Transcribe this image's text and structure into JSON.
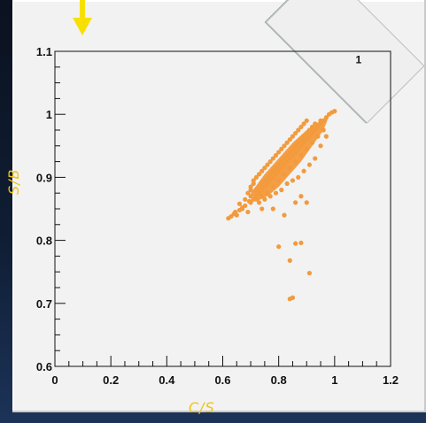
{
  "colors": {
    "point": "#f39a3c",
    "axes": "#111111",
    "label": "#f0c21a",
    "arrow": "#f7e000"
  },
  "decor": {
    "corner_ruler_label": "1"
  },
  "chart_data": {
    "type": "scatter",
    "xlabel": "C/S",
    "ylabel": "S/B",
    "xlim": [
      0,
      1.2
    ],
    "ylim": [
      0.6,
      1.1
    ],
    "x_ticks": [
      0,
      0.2,
      0.4,
      0.6,
      0.8,
      1,
      1.2
    ],
    "x_tick_labels": [
      "0",
      "0.2",
      "0.4",
      "0.6",
      "0.8",
      "1",
      "1.2"
    ],
    "y_ticks": [
      0.6,
      0.7,
      0.8,
      0.9,
      1,
      1.1
    ],
    "y_tick_labels": [
      "0.6",
      "0.7",
      "0.8",
      "0.9",
      "1",
      "1.1"
    ],
    "grid": false,
    "series": [
      {
        "values": [
          [
            0.62,
            0.835
          ],
          [
            0.63,
            0.838
          ],
          [
            0.64,
            0.842
          ],
          [
            0.645,
            0.845
          ],
          [
            0.66,
            0.848
          ],
          [
            0.67,
            0.852
          ],
          [
            0.68,
            0.855
          ],
          [
            0.69,
            0.845
          ],
          [
            0.7,
            0.86
          ],
          [
            0.7,
            0.87
          ],
          [
            0.71,
            0.865
          ],
          [
            0.72,
            0.87
          ],
          [
            0.72,
            0.88
          ],
          [
            0.73,
            0.875
          ],
          [
            0.73,
            0.885
          ],
          [
            0.74,
            0.88
          ],
          [
            0.74,
            0.89
          ],
          [
            0.75,
            0.885
          ],
          [
            0.75,
            0.895
          ],
          [
            0.76,
            0.89
          ],
          [
            0.76,
            0.9
          ],
          [
            0.77,
            0.895
          ],
          [
            0.77,
            0.905
          ],
          [
            0.78,
            0.9
          ],
          [
            0.78,
            0.91
          ],
          [
            0.79,
            0.905
          ],
          [
            0.79,
            0.915
          ],
          [
            0.8,
            0.91
          ],
          [
            0.8,
            0.92
          ],
          [
            0.81,
            0.915
          ],
          [
            0.81,
            0.925
          ],
          [
            0.82,
            0.92
          ],
          [
            0.82,
            0.93
          ],
          [
            0.83,
            0.925
          ],
          [
            0.83,
            0.935
          ],
          [
            0.84,
            0.93
          ],
          [
            0.84,
            0.94
          ],
          [
            0.85,
            0.935
          ],
          [
            0.85,
            0.945
          ],
          [
            0.86,
            0.94
          ],
          [
            0.86,
            0.95
          ],
          [
            0.87,
            0.945
          ],
          [
            0.87,
            0.955
          ],
          [
            0.88,
            0.95
          ],
          [
            0.88,
            0.96
          ],
          [
            0.89,
            0.955
          ],
          [
            0.89,
            0.965
          ],
          [
            0.9,
            0.96
          ],
          [
            0.9,
            0.97
          ],
          [
            0.91,
            0.965
          ],
          [
            0.91,
            0.975
          ],
          [
            0.92,
            0.97
          ],
          [
            0.92,
            0.98
          ],
          [
            0.93,
            0.975
          ],
          [
            0.93,
            0.985
          ],
          [
            0.94,
            0.98
          ],
          [
            0.95,
            0.985
          ],
          [
            0.95,
            0.99
          ],
          [
            0.96,
            0.99
          ],
          [
            0.97,
            0.995
          ],
          [
            0.98,
            1.0
          ],
          [
            0.99,
            1.003
          ],
          [
            1.0,
            1.005
          ],
          [
            0.7,
            0.88
          ],
          [
            0.71,
            0.895
          ],
          [
            0.72,
            0.9
          ],
          [
            0.73,
            0.905
          ],
          [
            0.74,
            0.91
          ],
          [
            0.75,
            0.915
          ],
          [
            0.76,
            0.92
          ],
          [
            0.77,
            0.925
          ],
          [
            0.78,
            0.93
          ],
          [
            0.79,
            0.935
          ],
          [
            0.8,
            0.94
          ],
          [
            0.81,
            0.945
          ],
          [
            0.82,
            0.95
          ],
          [
            0.83,
            0.955
          ],
          [
            0.84,
            0.96
          ],
          [
            0.85,
            0.965
          ],
          [
            0.86,
            0.97
          ],
          [
            0.87,
            0.975
          ],
          [
            0.88,
            0.98
          ],
          [
            0.89,
            0.985
          ],
          [
            0.9,
            0.99
          ],
          [
            0.72,
            0.865
          ],
          [
            0.74,
            0.87
          ],
          [
            0.76,
            0.875
          ],
          [
            0.78,
            0.885
          ],
          [
            0.8,
            0.895
          ],
          [
            0.82,
            0.905
          ],
          [
            0.84,
            0.915
          ],
          [
            0.86,
            0.925
          ],
          [
            0.88,
            0.935
          ],
          [
            0.9,
            0.945
          ],
          [
            0.92,
            0.955
          ],
          [
            0.94,
            0.965
          ],
          [
            0.96,
            0.975
          ],
          [
            0.68,
            0.865
          ],
          [
            0.69,
            0.875
          ],
          [
            0.7,
            0.885
          ],
          [
            0.71,
            0.89
          ],
          [
            0.67,
            0.85
          ],
          [
            0.65,
            0.84
          ],
          [
            0.66,
            0.858
          ],
          [
            0.695,
            0.862
          ],
          [
            0.73,
            0.86
          ],
          [
            0.75,
            0.865
          ],
          [
            0.77,
            0.87
          ],
          [
            0.79,
            0.875
          ],
          [
            0.81,
            0.88
          ],
          [
            0.83,
            0.89
          ],
          [
            0.85,
            0.895
          ],
          [
            0.87,
            0.9
          ],
          [
            0.89,
            0.91
          ],
          [
            0.91,
            0.92
          ],
          [
            0.93,
            0.93
          ],
          [
            0.95,
            0.95
          ],
          [
            0.97,
            0.965
          ],
          [
            0.74,
            0.85
          ],
          [
            0.78,
            0.85
          ],
          [
            0.82,
            0.84
          ],
          [
            0.9,
            0.86
          ],
          [
            0.86,
            0.86
          ],
          [
            0.88,
            0.87
          ],
          [
            0.8,
            0.79
          ],
          [
            0.86,
            0.795
          ],
          [
            0.88,
            0.796
          ],
          [
            0.84,
            0.768
          ],
          [
            0.91,
            0.748
          ],
          [
            0.84,
            0.707
          ],
          [
            0.85,
            0.709
          ]
        ]
      }
    ]
  }
}
